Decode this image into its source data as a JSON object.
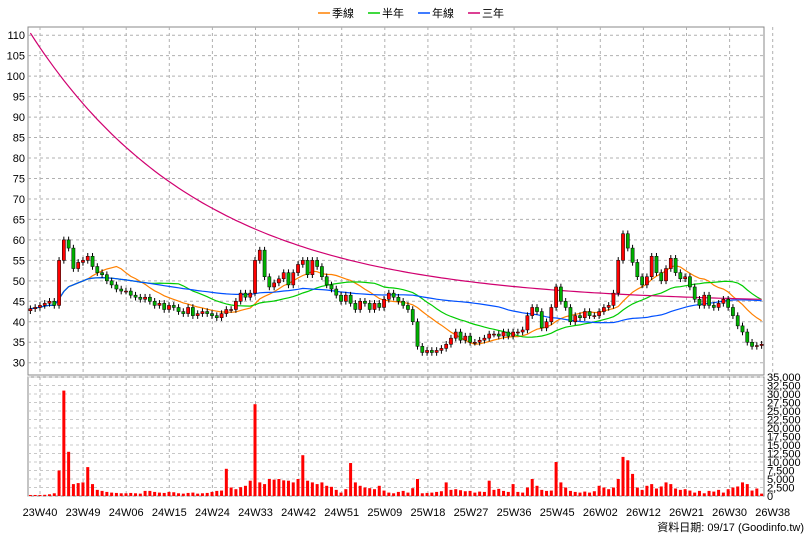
{
  "chart_data": {
    "type": "candlestick",
    "legend": [
      {
        "name": "季線",
        "color": "#ff8000"
      },
      {
        "name": "半年",
        "color": "#00cc00"
      },
      {
        "name": "年線",
        "color": "#0050ff"
      },
      {
        "name": "三年",
        "color": "#d00070"
      }
    ],
    "legend_position": "top-center",
    "grid": true,
    "price_axis": {
      "min": 27,
      "max": 112,
      "ticks": [
        110,
        105,
        100,
        95,
        90,
        85,
        80,
        75,
        70,
        65,
        60,
        55,
        50,
        45,
        40,
        35,
        30
      ]
    },
    "volume_axis": {
      "min": 0,
      "max": 35000,
      "ticks": [
        35000,
        32500,
        30000,
        27500,
        25000,
        22500,
        20000,
        17500,
        15000,
        12500,
        10000,
        7500,
        5000,
        2500,
        0
      ],
      "tick_labels": [
        "35,000",
        "32,500",
        "30,000",
        "27,500",
        "25,000",
        "22,500",
        "20,000",
        "17,500",
        "15,000",
        "12,500",
        "10,000",
        "7,500",
        "5,000",
        "2,500",
        "0"
      ]
    },
    "x_labels": [
      "23W40",
      "23W49",
      "24W06",
      "24W15",
      "24W24",
      "24W33",
      "24W42",
      "24W51",
      "25W09",
      "25W18",
      "25W27",
      "25W36",
      "25W45",
      "26W02",
      "26W12",
      "26W21",
      "26W30",
      "26W38"
    ],
    "source_label": "資料日期: 09/17 (Goodinfo.tw)",
    "close": [
      43.2,
      43.5,
      44.0,
      44.5,
      45.0,
      44.0,
      55.0,
      60.0,
      58.0,
      53.0,
      54.5,
      55.0,
      56.0,
      53.5,
      52.0,
      51.5,
      50.0,
      49.0,
      48.0,
      47.5,
      47.5,
      46.5,
      46.0,
      45.5,
      46.0,
      45.0,
      44.0,
      44.5,
      43.0,
      44.0,
      43.5,
      42.5,
      42.0,
      43.5,
      41.5,
      42.0,
      42.5,
      42.0,
      41.5,
      41.0,
      42.0,
      43.0,
      43.0,
      45.0,
      47.0,
      46.0,
      47.0,
      55.0,
      57.5,
      51.0,
      48.5,
      49.5,
      50.5,
      52.0,
      49.0,
      52.0,
      54.0,
      55.0,
      51.5,
      55.0,
      53.5,
      51.0,
      49.0,
      48.0,
      46.5,
      45.0,
      46.5,
      44.5,
      43.0,
      45.0,
      44.5,
      43.0,
      44.5,
      43.5,
      45.5,
      47.0,
      46.0,
      45.0,
      44.0,
      43.0,
      40.0,
      34.0,
      32.5,
      33.0,
      32.5,
      33.0,
      33.5,
      34.5,
      36.0,
      37.5,
      35.5,
      36.5,
      35.0,
      35.0,
      35.5,
      36.0,
      37.0,
      37.0,
      36.5,
      37.5,
      36.5,
      37.5,
      37.5,
      38.0,
      41.5,
      43.5,
      42.5,
      38.5,
      40.0,
      43.5,
      48.5,
      45.0,
      43.5,
      40.0,
      41.5,
      41.0,
      42.5,
      41.5,
      41.5,
      42.5,
      43.5,
      44.0,
      47.0,
      55.0,
      61.5,
      58.0,
      54.5,
      51.0,
      49.0,
      51.0,
      56.0,
      52.0,
      50.0,
      53.0,
      55.5,
      52.0,
      50.5,
      51.0,
      48.5,
      45.5,
      44.0,
      46.5,
      44.0,
      43.5,
      44.5,
      45.5,
      43.5,
      41.5,
      39.0,
      37.5,
      35.0,
      34.0,
      34.2,
      34.5
    ],
    "volume": [
      300,
      300,
      300,
      350,
      500,
      800,
      7500,
      31000,
      13000,
      3500,
      3800,
      4000,
      8500,
      3500,
      1800,
      1500,
      1200,
      1000,
      900,
      800,
      800,
      900,
      800,
      700,
      1500,
      1500,
      1200,
      1000,
      900,
      1200,
      1100,
      800,
      700,
      900,
      1000,
      700,
      800,
      900,
      1200,
      1500,
      1600,
      8000,
      2500,
      2000,
      2600,
      3000,
      4500,
      27000,
      4000,
      3500,
      5000,
      4800,
      5000,
      4600,
      4500,
      4000,
      5000,
      12000,
      4500,
      4000,
      3500,
      4000,
      3000,
      2700,
      1800,
      1000,
      2000,
      9700,
      4000,
      3000,
      2500,
      2300,
      2000,
      3000,
      1600,
      1000,
      800,
      1200,
      1500,
      1000,
      2300,
      5000,
      800,
      900,
      1000,
      1200,
      1400,
      4000,
      1800,
      2000,
      1700,
      1400,
      1500,
      1000,
      1300,
      1200,
      4500,
      1800,
      2100,
      1500,
      1200,
      3500,
      1200,
      1000,
      2500,
      5000,
      3000,
      1800,
      1500,
      1600,
      10000,
      4000,
      2500,
      1500,
      1200,
      1000,
      1300,
      1000,
      1400,
      3000,
      2500,
      2000,
      2500,
      5000,
      11500,
      10500,
      6500,
      2500,
      1800,
      3000,
      3500,
      2200,
      2800,
      4000,
      3500,
      2200,
      1800,
      2000,
      1600,
      1000,
      1500,
      800,
      1500,
      1300,
      1800,
      1000,
      2000,
      2500,
      2800,
      4000,
      3500,
      1600,
      2200,
      700
    ]
  }
}
